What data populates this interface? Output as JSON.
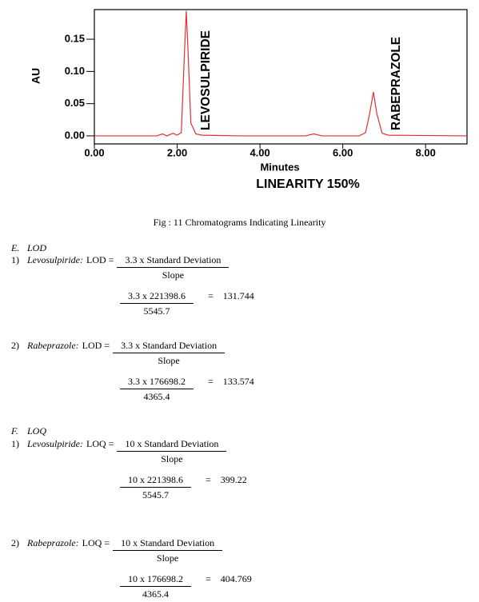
{
  "chart_data": {
    "type": "line",
    "subtitle": "LINEARITY 150%",
    "x_label": "Minutes",
    "y_label": "AU",
    "peak_labels": [
      "LEVOSULPIRIDE",
      "RABEPRAZOLE"
    ],
    "x": [
      0,
      1.5,
      1.65,
      1.75,
      1.9,
      2.0,
      2.1,
      2.17,
      2.22,
      2.27,
      2.33,
      2.45,
      2.6,
      3.5,
      5.1,
      5.3,
      5.5,
      6.4,
      6.55,
      6.65,
      6.74,
      6.82,
      6.95,
      7.1,
      9
    ],
    "series": [
      {
        "color": "#e03030",
        "values": [
          0,
          0,
          0.003,
          0,
          0.004,
          0.001,
          0.005,
          0.12,
          0.194,
          0.12,
          0.02,
          0.003,
          0.001,
          0,
          0,
          0.003,
          0,
          0,
          0.005,
          0.035,
          0.068,
          0.035,
          0.004,
          0.001,
          0
        ]
      }
    ],
    "xlim": [
      0,
      9
    ],
    "ylim": [
      -0.0125,
      0.196
    ],
    "xticks": [
      {
        "value": 0,
        "label": "0.00"
      },
      {
        "value": 2,
        "label": "2.00"
      },
      {
        "value": 4,
        "label": "4.00"
      },
      {
        "value": 6,
        "label": "6.00"
      },
      {
        "value": 8,
        "label": "8.00"
      }
    ],
    "yticks": [
      {
        "value": 0,
        "label": "0.00"
      },
      0.05,
      {
        "value": 0.1,
        "label": "0.10"
      },
      0.15
    ]
  },
  "caption": "Fig : 11 Chromatograms Indicating Linearity",
  "sections": [
    {
      "letter": "E.",
      "title": "LOD",
      "items": [
        {
          "num": "1)",
          "compound": "Levosulpiride:",
          "label": "LOD =",
          "numerator": "3.3 x Standard Deviation",
          "denominator": "Slope",
          "calc_numerator": "3.3 x 221398.6",
          "calc_denominator": "5545.7",
          "equals": "=",
          "result": "131.744"
        },
        {
          "num": "2)",
          "compound": "Rabeprazole:",
          "label": "LOD =",
          "numerator": "3.3 x Standard Deviation",
          "denominator": "Slope",
          "calc_numerator": "3.3 x 176698.2",
          "calc_denominator": "4365.4",
          "equals": "=",
          "result": "133.574"
        }
      ]
    },
    {
      "letter": "F.",
      "title": "LOQ",
      "items": [
        {
          "num": "1)",
          "compound": "Levosulpiride:",
          "label": "LOQ =",
          "numerator": "10 x Standard Deviation",
          "denominator": "Slope",
          "calc_numerator": "10 x 221398.6",
          "calc_denominator": "5545.7",
          "equals": "=",
          "result": "399.22"
        },
        {
          "num": "2)",
          "compound": "Rabeprazole:",
          "label": "LOQ =",
          "numerator": "10 x Standard Deviation",
          "denominator": "Slope",
          "calc_numerator": "10 x 176698.2",
          "calc_denominator": "4365.4",
          "equals": "=",
          "result": "404.769"
        }
      ]
    }
  ]
}
